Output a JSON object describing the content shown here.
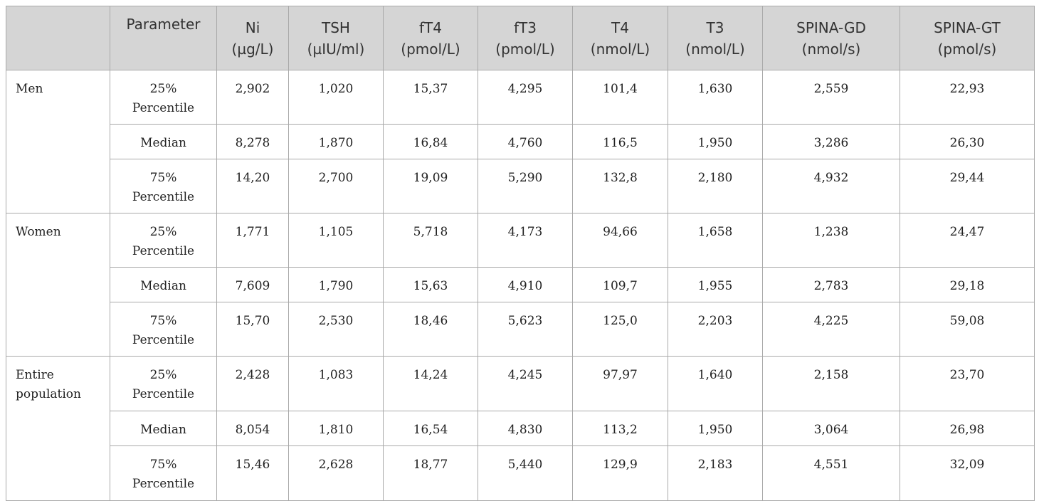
{
  "header": {
    "group": "",
    "parameter": "Parameter",
    "columns": [
      {
        "name": "Ni",
        "unit": "(µg/L)"
      },
      {
        "name": "TSH",
        "unit": "(µIU/ml)"
      },
      {
        "name": "fT4",
        "unit": "(pmol/L)"
      },
      {
        "name": "fT3",
        "unit": "(pmol/L)"
      },
      {
        "name": "T4",
        "unit": "(nmol/L)"
      },
      {
        "name": "T3",
        "unit": "(nmol/L)"
      },
      {
        "name": "SPINA-GD",
        "unit": "(nmol/s)"
      },
      {
        "name": "SPINA-GT",
        "unit": "(pmol/s)"
      }
    ]
  },
  "groups": [
    {
      "label_line1": "Men",
      "label_line2": "",
      "rows": [
        {
          "param_line1": "25%",
          "param_line2": "Percentile",
          "values": [
            "2,902",
            "1,020",
            "15,37",
            "4,295",
            "101,4",
            "1,630",
            "2,559",
            "22,93"
          ]
        },
        {
          "param_line1": "Median",
          "param_line2": "",
          "values": [
            "8,278",
            "1,870",
            "16,84",
            "4,760",
            "116,5",
            "1,950",
            "3,286",
            "26,30"
          ]
        },
        {
          "param_line1": "75%",
          "param_line2": "Percentile",
          "values": [
            "14,20",
            "2,700",
            "19,09",
            "5,290",
            "132,8",
            "2,180",
            "4,932",
            "29,44"
          ]
        }
      ]
    },
    {
      "label_line1": "Women",
      "label_line2": "",
      "rows": [
        {
          "param_line1": "25%",
          "param_line2": "Percentile",
          "values": [
            "1,771",
            "1,105",
            "5,718",
            "4,173",
            "94,66",
            "1,658",
            "1,238",
            "24,47"
          ]
        },
        {
          "param_line1": "Median",
          "param_line2": "",
          "values": [
            "7,609",
            "1,790",
            "15,63",
            "4,910",
            "109,7",
            "1,955",
            "2,783",
            "29,18"
          ]
        },
        {
          "param_line1": "75%",
          "param_line2": "Percentile",
          "values": [
            "15,70",
            "2,530",
            "18,46",
            "5,623",
            "125,0",
            "2,203",
            "4,225",
            "59,08"
          ]
        }
      ]
    },
    {
      "label_line1": "Entire",
      "label_line2": "population",
      "rows": [
        {
          "param_line1": "25%",
          "param_line2": "Percentile",
          "values": [
            "2,428",
            "1,083",
            "14,24",
            "4,245",
            "97,97",
            "1,640",
            "2,158",
            "23,70"
          ]
        },
        {
          "param_line1": "Median",
          "param_line2": "",
          "values": [
            "8,054",
            "1,810",
            "16,54",
            "4,830",
            "113,2",
            "1,950",
            "3,064",
            "26,98"
          ]
        },
        {
          "param_line1": "75%",
          "param_line2": "Percentile",
          "values": [
            "15,46",
            "2,628",
            "18,77",
            "5,440",
            "129,9",
            "2,183",
            "4,551",
            "32,09"
          ]
        }
      ]
    }
  ]
}
